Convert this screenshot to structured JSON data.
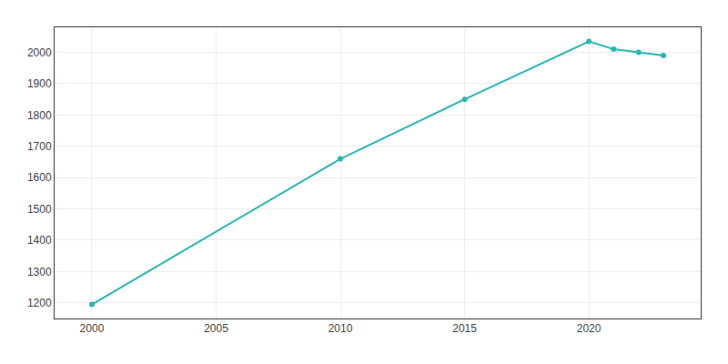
{
  "chart_data": {
    "type": "line",
    "x": [
      2000,
      2010,
      2015,
      2020,
      2021,
      2022,
      2023
    ],
    "values": [
      1195,
      1660,
      1850,
      2035,
      2010,
      2000,
      1990
    ],
    "color": "#29b8b0",
    "marker": "circle",
    "xlim": [
      1998.5,
      2024.5
    ],
    "ylim": [
      1150,
      2080
    ],
    "xticks": [
      2000,
      2005,
      2010,
      2015,
      2020
    ],
    "yticks": [
      1200,
      1300,
      1400,
      1500,
      1600,
      1700,
      1800,
      1900,
      2000
    ],
    "grid": true
  }
}
